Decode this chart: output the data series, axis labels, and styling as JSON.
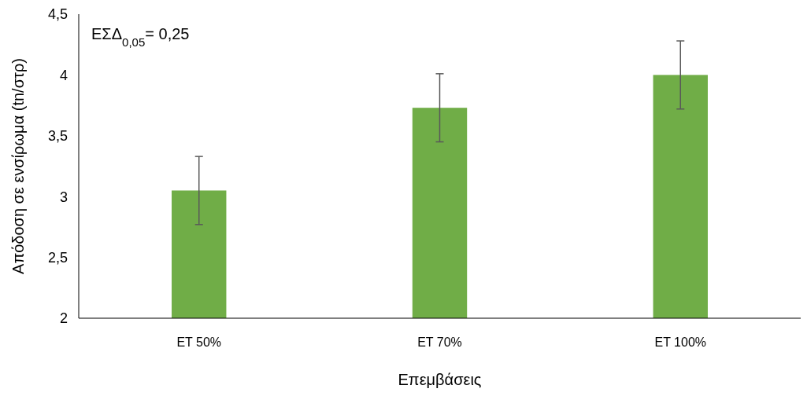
{
  "chart_data": {
    "type": "bar",
    "xlabel": "Επεμβάσεις",
    "ylabel": "Απόδοση σε ενσίρωμα (tn/στρ)",
    "categories": [
      "ΕΤ 50%",
      "ΕΤ 70%",
      "ΕΤ 100%"
    ],
    "values": [
      3.05,
      3.73,
      4.0
    ],
    "errors": [
      0.28,
      0.28,
      0.28
    ],
    "color": "#70ad47",
    "ylim": [
      2,
      4.5
    ],
    "yticks": [
      2,
      {
        "value": 2.5,
        "label": "2,5"
      },
      3,
      {
        "value": 3.5,
        "label": "3,5"
      },
      4,
      {
        "value": 4.5,
        "label": "4,5"
      }
    ],
    "grid": false,
    "annotations": [
      "ΕΣΔ$_{0,05}$= 0,25"
    ]
  }
}
